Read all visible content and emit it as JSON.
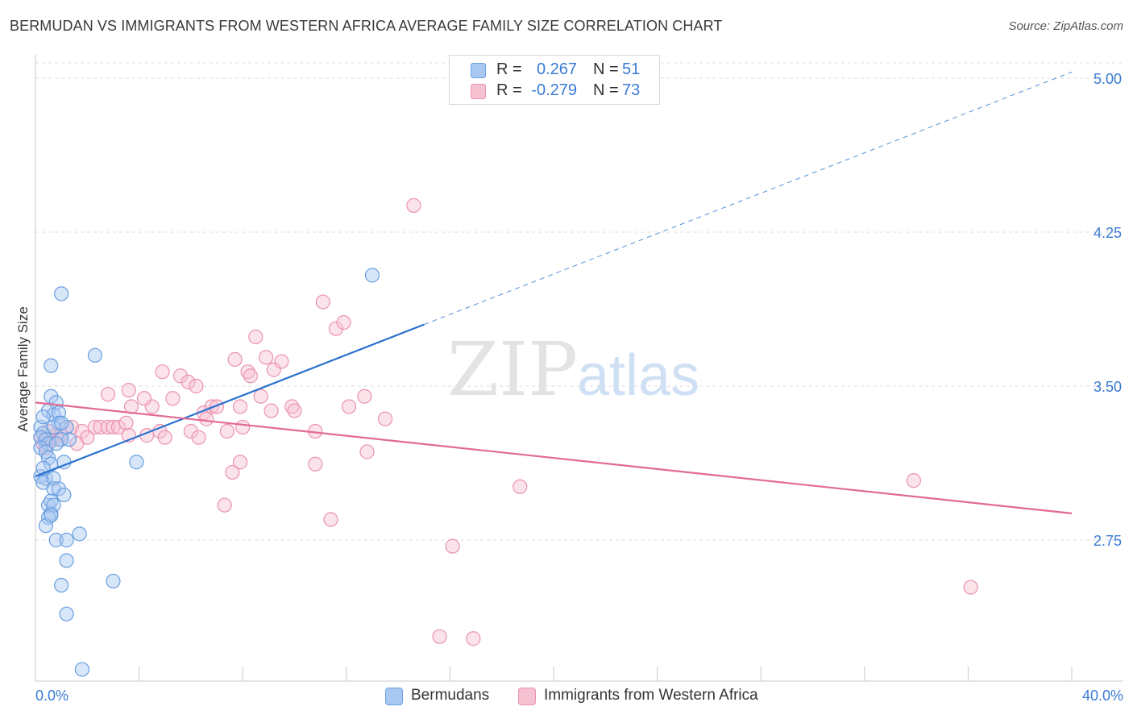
{
  "title": "BERMUDAN VS IMMIGRANTS FROM WESTERN AFRICA AVERAGE FAMILY SIZE CORRELATION CHART",
  "source": "Source: ZipAtlas.com",
  "watermark": {
    "zip": "ZIP",
    "atlas": "atlas"
  },
  "colors": {
    "blue_fill": "#a9c8f1",
    "blue_stroke": "#6a9fe0",
    "blue_line": "#2a72d0",
    "pink_fill": "#f6c1d1",
    "pink_stroke": "#eb92b0",
    "pink_line": "#e26a93",
    "tick_label": "#3a7bd5",
    "grid": "#dcdcdc"
  },
  "legend_top": [
    {
      "r_label": "R =",
      "r_value": "0.267",
      "n_label": "N =",
      "n_value": "51"
    },
    {
      "r_label": "R =",
      "r_value": "-0.279",
      "n_label": "N =",
      "n_value": "73"
    }
  ],
  "legend_bottom": [
    "Bermudans",
    "Immigrants from Western Africa"
  ],
  "chart_data": {
    "type": "scatter",
    "title": "BERMUDAN VS IMMIGRANTS FROM WESTERN AFRICA AVERAGE FAMILY SIZE CORRELATION CHART",
    "xlabel": "",
    "ylabel": "Average Family Size",
    "xlim": [
      0,
      40
    ],
    "ylim": [
      2.05,
      5.1
    ],
    "x_tick_labels": [
      "0.0%",
      "40.0%"
    ],
    "y_ticks": [
      5.0,
      4.25,
      3.5,
      2.75
    ],
    "y_tick_labels": [
      "5.00",
      "4.25",
      "3.50",
      "2.75"
    ],
    "grid": "horizontal dashed",
    "legend_placement": "top-center and bottom",
    "series": [
      {
        "name": "Bermudans",
        "trend": {
          "x0": 0.0,
          "y0": 3.06,
          "x1": 15.0,
          "y1": 3.8,
          "dashed_to_x": 40.0,
          "dashed_to_y": 5.03
        },
        "points": [
          [
            0.2,
            3.3
          ],
          [
            0.3,
            3.27
          ],
          [
            0.2,
            3.25
          ],
          [
            0.4,
            3.24
          ],
          [
            0.5,
            3.22
          ],
          [
            0.2,
            3.2
          ],
          [
            0.4,
            3.18
          ],
          [
            0.5,
            3.15
          ],
          [
            0.6,
            3.12
          ],
          [
            0.2,
            3.06
          ],
          [
            0.4,
            3.05
          ],
          [
            0.3,
            3.03
          ],
          [
            0.5,
            2.92
          ],
          [
            0.6,
            2.88
          ],
          [
            0.5,
            2.86
          ],
          [
            0.4,
            2.82
          ],
          [
            0.5,
            3.38
          ],
          [
            0.6,
            3.6
          ],
          [
            0.6,
            3.45
          ],
          [
            0.7,
            3.36
          ],
          [
            0.8,
            3.42
          ],
          [
            0.9,
            3.37
          ],
          [
            0.9,
            3.32
          ],
          [
            0.7,
            3.3
          ],
          [
            1.2,
            3.3
          ],
          [
            1.3,
            3.24
          ],
          [
            1.0,
            3.24
          ],
          [
            0.7,
            3.05
          ],
          [
            0.7,
            3.0
          ],
          [
            0.9,
            3.0
          ],
          [
            1.1,
            2.97
          ],
          [
            0.6,
            2.94
          ],
          [
            0.7,
            2.92
          ],
          [
            0.6,
            2.87
          ],
          [
            0.8,
            2.75
          ],
          [
            1.2,
            2.75
          ],
          [
            1.7,
            2.78
          ],
          [
            1.2,
            2.65
          ],
          [
            1.0,
            2.53
          ],
          [
            1.2,
            2.39
          ],
          [
            1.8,
            2.12
          ],
          [
            1.0,
            3.95
          ],
          [
            2.3,
            3.65
          ],
          [
            3.0,
            2.55
          ],
          [
            3.9,
            3.13
          ],
          [
            13.0,
            4.04
          ],
          [
            1.1,
            3.13
          ],
          [
            0.3,
            3.1
          ],
          [
            0.8,
            3.22
          ],
          [
            0.3,
            3.35
          ],
          [
            1.0,
            3.32
          ]
        ]
      },
      {
        "name": "Immigrants from Western Africa",
        "trend": {
          "x0": 0.0,
          "y0": 3.42,
          "x1": 40.0,
          "y1": 2.88
        },
        "points": [
          [
            0.2,
            3.25
          ],
          [
            0.3,
            3.22
          ],
          [
            0.4,
            3.2
          ],
          [
            0.5,
            3.28
          ],
          [
            0.6,
            3.24
          ],
          [
            0.8,
            3.26
          ],
          [
            0.9,
            3.24
          ],
          [
            1.0,
            3.26
          ],
          [
            1.2,
            3.3
          ],
          [
            1.4,
            3.3
          ],
          [
            1.6,
            3.22
          ],
          [
            1.8,
            3.28
          ],
          [
            2.0,
            3.25
          ],
          [
            2.3,
            3.3
          ],
          [
            2.5,
            3.3
          ],
          [
            2.8,
            3.3
          ],
          [
            3.0,
            3.3
          ],
          [
            3.2,
            3.3
          ],
          [
            3.5,
            3.32
          ],
          [
            3.6,
            3.26
          ],
          [
            4.3,
            3.26
          ],
          [
            4.5,
            3.4
          ],
          [
            4.8,
            3.28
          ],
          [
            5.0,
            3.25
          ],
          [
            2.8,
            3.46
          ],
          [
            3.6,
            3.48
          ],
          [
            3.7,
            3.4
          ],
          [
            4.2,
            3.44
          ],
          [
            4.9,
            3.57
          ],
          [
            5.3,
            3.44
          ],
          [
            5.6,
            3.55
          ],
          [
            5.9,
            3.52
          ],
          [
            6.0,
            3.28
          ],
          [
            6.2,
            3.5
          ],
          [
            6.3,
            3.25
          ],
          [
            6.5,
            3.37
          ],
          [
            6.6,
            3.34
          ],
          [
            6.8,
            3.4
          ],
          [
            7.0,
            3.4
          ],
          [
            7.4,
            3.28
          ],
          [
            7.6,
            3.08
          ],
          [
            7.7,
            3.63
          ],
          [
            7.9,
            3.4
          ],
          [
            8.0,
            3.3
          ],
          [
            8.2,
            3.57
          ],
          [
            8.3,
            3.55
          ],
          [
            8.5,
            3.74
          ],
          [
            8.7,
            3.45
          ],
          [
            8.9,
            3.64
          ],
          [
            9.1,
            3.38
          ],
          [
            9.2,
            3.58
          ],
          [
            9.5,
            3.62
          ],
          [
            9.9,
            3.4
          ],
          [
            10.0,
            3.38
          ],
          [
            10.8,
            3.28
          ],
          [
            10.8,
            3.12
          ],
          [
            11.1,
            3.91
          ],
          [
            11.6,
            3.78
          ],
          [
            11.9,
            3.81
          ],
          [
            12.1,
            3.4
          ],
          [
            12.7,
            3.45
          ],
          [
            12.8,
            3.18
          ],
          [
            13.5,
            3.34
          ],
          [
            14.6,
            4.38
          ],
          [
            7.3,
            2.92
          ],
          [
            11.4,
            2.85
          ],
          [
            16.1,
            2.72
          ],
          [
            15.6,
            2.28
          ],
          [
            16.9,
            2.27
          ],
          [
            18.7,
            3.01
          ],
          [
            33.9,
            3.04
          ],
          [
            36.1,
            2.52
          ],
          [
            7.9,
            3.13
          ]
        ]
      }
    ]
  }
}
